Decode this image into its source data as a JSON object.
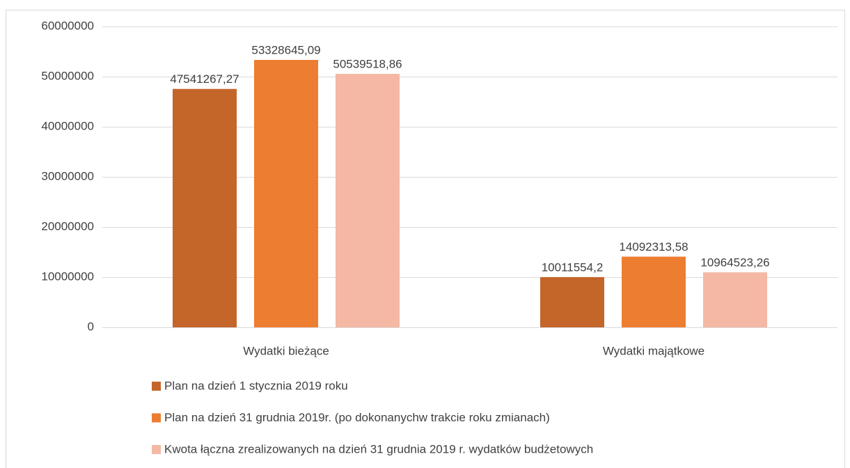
{
  "chart_data": {
    "type": "bar",
    "categories": [
      "Wydatki bieżące",
      "Wydatki majątkowe"
    ],
    "series": [
      {
        "name": "Plan na dzień 1 stycznia 2019 roku",
        "color": "#c4652a",
        "values": [
          47541267.27,
          10011554.2
        ],
        "value_labels": [
          "47541267,27",
          "10011554,2"
        ]
      },
      {
        "name": "Plan na dzień 31 grudnia 2019r. (po dokonanychw trakcie roku zmianach)",
        "color": "#ed7d31",
        "values": [
          53328645.09,
          14092313.58
        ],
        "value_labels": [
          "53328645,09",
          "14092313,58"
        ]
      },
      {
        "name": "Kwota łączna zrealizowanych na dzień 31 grudnia 2019 r. wydatków budżetowych",
        "color": "#f4b8a4",
        "values": [
          50539518.86,
          10964523.26
        ],
        "value_labels": [
          "50539518,86",
          "10964523,26"
        ]
      }
    ],
    "ylim": [
      0,
      60000000
    ],
    "yticks": [
      0,
      10000000,
      20000000,
      30000000,
      40000000,
      50000000,
      60000000
    ],
    "grid": true,
    "legend": "bottom"
  }
}
